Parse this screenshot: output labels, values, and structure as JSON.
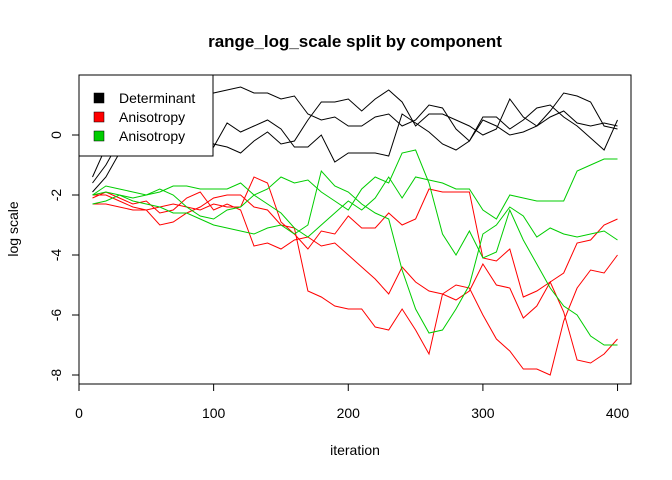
{
  "chart_data": {
    "type": "line",
    "title": "range_log_scale split by component",
    "xlabel": "iteration",
    "ylabel": "log scale",
    "xlim": [
      0,
      410
    ],
    "ylim": [
      -8.3,
      2.0
    ],
    "x_ticks": [
      0,
      100,
      200,
      300,
      400
    ],
    "y_ticks": [
      -8,
      -6,
      -4,
      -2,
      0
    ],
    "legend": {
      "position": "top-left",
      "entries": [
        {
          "label": "Determinant",
          "color": "#000000"
        },
        {
          "label": "Anisotropy",
          "color": "#ff0000"
        },
        {
          "label": "Anisotropy",
          "color": "#00cd00"
        }
      ]
    },
    "x": [
      10,
      20,
      30,
      40,
      50,
      60,
      70,
      80,
      90,
      100,
      110,
      120,
      130,
      140,
      150,
      160,
      170,
      180,
      190,
      200,
      210,
      220,
      230,
      240,
      250,
      260,
      270,
      280,
      290,
      300,
      310,
      320,
      330,
      340,
      350,
      360,
      370,
      380,
      390,
      400
    ],
    "series": [
      {
        "color": "#000000",
        "values": [
          -1.9,
          -1.4,
          -0.6,
          -0.4,
          -0.3,
          0.1,
          0.5,
          0.9,
          1.1,
          1.4,
          1.5,
          1.6,
          1.4,
          1.4,
          1.2,
          1.3,
          0.7,
          0.5,
          0.6,
          0.3,
          0.3,
          0.6,
          0.7,
          0.3,
          0.5,
          1.0,
          0.9,
          0.2,
          -0.2,
          0.6,
          0.6,
          0.2,
          0.5,
          0.9,
          1.0,
          0.6,
          0.3,
          -0.1,
          -0.5,
          0.5
        ]
      },
      {
        "color": "#000000",
        "values": [
          -1.6,
          -1.0,
          -0.2,
          0.2,
          0.4,
          0.7,
          0.5,
          0.8,
          0.4,
          -0.3,
          -0.4,
          -0.6,
          -0.2,
          0.1,
          -0.3,
          -0.2,
          0.5,
          1.1,
          1.1,
          1.2,
          0.8,
          1.2,
          1.5,
          1.1,
          0.3,
          0.7,
          0.7,
          0.5,
          0.3,
          0.0,
          0.2,
          1.2,
          0.6,
          0.3,
          0.8,
          1.4,
          1.3,
          1.1,
          0.3,
          0.2
        ]
      },
      {
        "color": "#000000",
        "values": [
          -1.4,
          -0.4,
          0.0,
          0.0,
          -0.1,
          0.2,
          -0.1,
          -0.3,
          -0.3,
          -0.4,
          0.4,
          0.1,
          0.3,
          0.5,
          0.2,
          -0.4,
          -0.4,
          0.0,
          -0.9,
          -0.6,
          -0.6,
          -0.6,
          -0.7,
          0.7,
          0.4,
          0.1,
          -0.3,
          -0.5,
          -0.2,
          0.5,
          0.3,
          0.0,
          0.1,
          0.3,
          0.6,
          0.8,
          0.4,
          0.3,
          0.4,
          0.3
        ]
      },
      {
        "color": "#ff0000",
        "values": [
          -2.0,
          -2.0,
          -2.2,
          -2.4,
          -2.5,
          -2.4,
          -2.3,
          -2.4,
          -2.5,
          -2.3,
          -2.4,
          -2.4,
          -1.4,
          -1.6,
          -2.9,
          -3.3,
          -3.8,
          -3.2,
          -3.3,
          -2.7,
          -3.1,
          -3.1,
          -2.6,
          -3.0,
          -2.8,
          -1.8,
          -1.9,
          -1.9,
          -1.9,
          -4.1,
          -4.2,
          -3.8,
          -5.4,
          -5.2,
          -4.9,
          -4.6,
          -3.6,
          -3.5,
          -3.0,
          -2.8
        ]
      },
      {
        "color": "#ff0000",
        "values": [
          -2.3,
          -2.3,
          -2.4,
          -2.5,
          -2.5,
          -3.0,
          -2.9,
          -2.6,
          -2.4,
          -2.1,
          -2.0,
          -2.0,
          -2.4,
          -2.5,
          -3.0,
          -3.1,
          -5.2,
          -5.4,
          -5.7,
          -5.8,
          -5.8,
          -6.4,
          -6.5,
          -5.8,
          -6.5,
          -7.3,
          -5.3,
          -5.0,
          -5.1,
          -6.0,
          -6.8,
          -7.2,
          -7.8,
          -7.8,
          -8.0,
          -6.2,
          -5.1,
          -4.5,
          -4.6,
          -4.0
        ]
      },
      {
        "color": "#ff0000",
        "values": [
          -2.1,
          -1.9,
          -2.1,
          -2.3,
          -2.2,
          -2.6,
          -2.5,
          -2.1,
          -1.9,
          -2.5,
          -2.3,
          -2.5,
          -3.7,
          -3.6,
          -3.8,
          -3.5,
          -3.4,
          -3.7,
          -3.6,
          -4.0,
          -4.4,
          -4.8,
          -5.3,
          -4.4,
          -4.9,
          -5.2,
          -5.3,
          -5.5,
          -5.2,
          -4.3,
          -5.0,
          -5.1,
          -6.1,
          -5.7,
          -4.9,
          -5.9,
          -7.5,
          -7.6,
          -7.3,
          -6.8
        ]
      },
      {
        "color": "#00cd00",
        "values": [
          -2.0,
          -1.9,
          -2.0,
          -2.1,
          -2.0,
          -1.9,
          -1.7,
          -1.7,
          -1.8,
          -1.8,
          -1.8,
          -1.6,
          -2.0,
          -2.3,
          -2.6,
          -3.1,
          -3.4,
          -3.0,
          -2.6,
          -2.2,
          -2.5,
          -2.1,
          -1.4,
          -2.1,
          -1.4,
          -1.5,
          -1.6,
          -1.8,
          -1.8,
          -2.5,
          -2.8,
          -2.0,
          -2.1,
          -2.2,
          -2.2,
          -2.2,
          -1.2,
          -1.0,
          -0.8,
          -0.8
        ]
      },
      {
        "color": "#00cd00",
        "values": [
          -2.3,
          -2.2,
          -2.0,
          -2.2,
          -2.3,
          -2.4,
          -2.6,
          -2.6,
          -2.8,
          -3.0,
          -3.1,
          -3.2,
          -3.3,
          -3.1,
          -3.0,
          -3.3,
          -3.0,
          -1.2,
          -1.7,
          -1.9,
          -2.3,
          -2.6,
          -2.8,
          -4.5,
          -5.8,
          -6.6,
          -6.5,
          -5.8,
          -5.0,
          -3.3,
          -3.0,
          -2.4,
          -2.7,
          -3.4,
          -3.1,
          -3.3,
          -3.4,
          -3.3,
          -3.2,
          -3.5
        ]
      },
      {
        "color": "#00cd00",
        "values": [
          -2.0,
          -1.7,
          -1.8,
          -1.9,
          -2.0,
          -1.8,
          -2.0,
          -2.4,
          -2.7,
          -2.8,
          -2.5,
          -2.4,
          -2.0,
          -1.8,
          -1.4,
          -1.6,
          -1.5,
          -1.9,
          -2.2,
          -2.5,
          -1.8,
          -1.4,
          -1.6,
          -0.6,
          -0.5,
          -1.6,
          -3.3,
          -4.0,
          -3.2,
          -4.1,
          -3.9,
          -2.5,
          -3.5,
          -4.3,
          -5.1,
          -5.7,
          -6.0,
          -6.7,
          -7.0,
          -7.0
        ]
      }
    ]
  }
}
